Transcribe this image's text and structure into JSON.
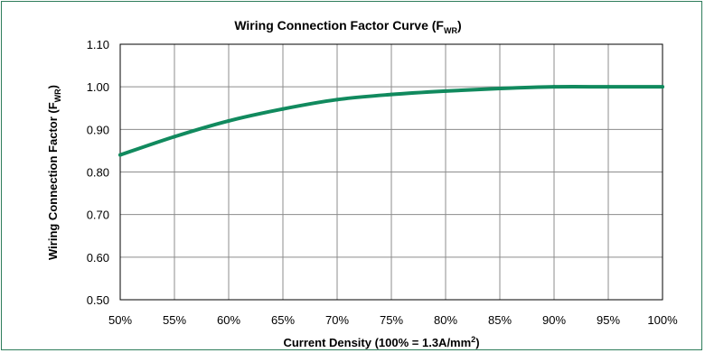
{
  "chart_data": {
    "type": "line",
    "title": "Wiring  Connection Factor Curve (F",
    "title_sub": "WR",
    "title_end": ")",
    "xlabel": "Current Density  (100% = 1.3A/mm",
    "xlabel_sup": "2",
    "xlabel_end": ")",
    "ylabel": "Wiring Connection Factor  (F",
    "ylabel_sub": "WR",
    "ylabel_end": ")",
    "xlim": [
      50,
      100
    ],
    "ylim": [
      0.5,
      1.1
    ],
    "x_ticks": [
      50,
      55,
      60,
      65,
      70,
      75,
      80,
      85,
      90,
      95,
      100
    ],
    "x_tick_labels": [
      "50%",
      "55%",
      "60%",
      "65%",
      "70%",
      "75%",
      "80%",
      "85%",
      "90%",
      "95%",
      "100%"
    ],
    "y_ticks": [
      0.5,
      0.6,
      0.7,
      0.8,
      0.9,
      1.0,
      1.1
    ],
    "y_tick_labels": [
      "0.50",
      "0.60",
      "0.70",
      "0.80",
      "0.90",
      "1.00",
      "1.10"
    ],
    "grid": true,
    "legend": "none",
    "series": [
      {
        "color": "#118a5e",
        "x": [
          50,
          55,
          60,
          65,
          70,
          75,
          80,
          85,
          90,
          95,
          100
        ],
        "y": [
          0.84,
          0.883,
          0.92,
          0.948,
          0.97,
          0.982,
          0.99,
          0.996,
          1.0,
          1.0,
          1.0
        ]
      }
    ]
  }
}
